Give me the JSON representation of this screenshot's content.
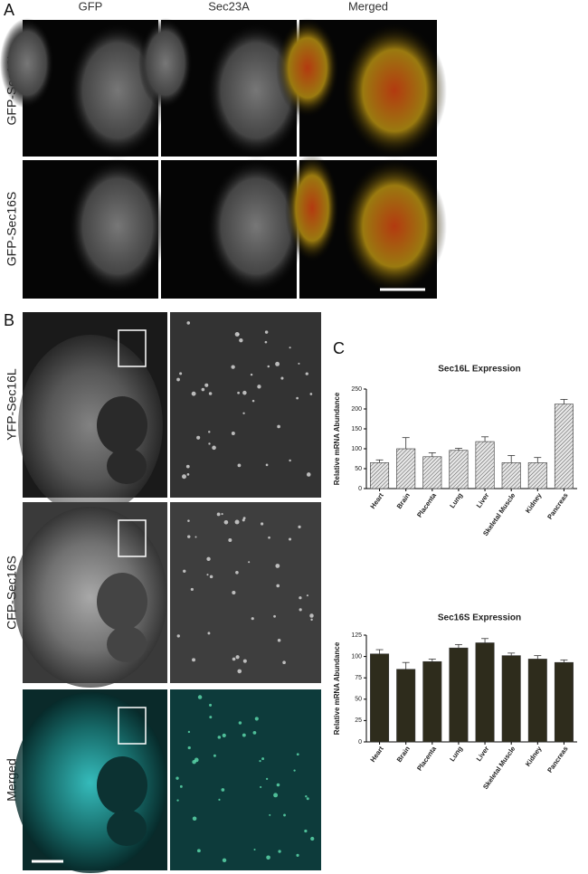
{
  "panel_labels": [
    "A",
    "B",
    "C"
  ],
  "panel_a": {
    "columns": [
      "GFP",
      "Sec23A",
      "Merged"
    ],
    "rows": [
      "GFP-Sec16L",
      "GFP-Sec16S"
    ]
  },
  "panel_b": {
    "rows": [
      "YFP-Sec16L",
      "CFP-Sec16S",
      "Merged"
    ]
  },
  "chart_data": [
    {
      "type": "bar",
      "title": "Sec16L Expression",
      "ylabel": "Relative mRNA Abundance",
      "categories": [
        "Heart",
        "Brain",
        "Placenta",
        "Lung",
        "Liver",
        "Skeletal Muscle",
        "Kidney",
        "Pancreas"
      ],
      "values": [
        65,
        100,
        80,
        96,
        118,
        65,
        65,
        212
      ],
      "errors": [
        7,
        28,
        10,
        5,
        12,
        18,
        13,
        12
      ],
      "color": "#bdbdbd",
      "pattern": "hatch",
      "ylim": [
        0,
        250
      ],
      "yticks": [
        0,
        50,
        100,
        150,
        200,
        250
      ]
    },
    {
      "type": "bar",
      "title": "Sec16S Expression",
      "ylabel": "Relative mRNA Abundance",
      "categories": [
        "Heart",
        "Brain",
        "Placenta",
        "Lung",
        "Liver",
        "Skeletal Muscle",
        "Kidney",
        "Pancreas"
      ],
      "values": [
        103,
        85,
        94,
        110,
        116,
        101,
        97,
        93
      ],
      "errors": [
        5,
        8,
        3,
        4,
        5,
        3,
        4,
        3
      ],
      "color": "#2e2c1c",
      "ylim": [
        0,
        125
      ],
      "yticks": [
        0,
        25,
        50,
        75,
        100,
        125
      ]
    }
  ]
}
